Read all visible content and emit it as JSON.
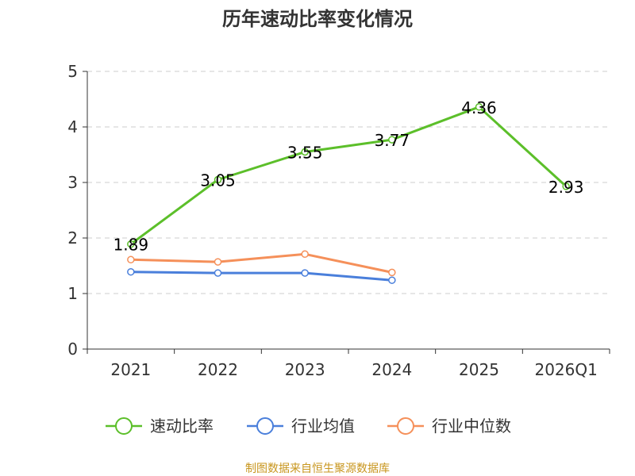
{
  "chart_data": {
    "type": "line",
    "title": "历年速动比率变化情况",
    "categories": [
      "2021",
      "2022",
      "2023",
      "2024",
      "2025",
      "2026Q1"
    ],
    "ylim": [
      0,
      5
    ],
    "yticks": [
      "0",
      "1",
      "2",
      "3",
      "4",
      "5"
    ],
    "grid": true,
    "legend_position": "bottom",
    "series": [
      {
        "name": "速动比率",
        "color": "#5cbf2a",
        "values": [
          1.89,
          3.05,
          3.55,
          3.77,
          4.36,
          2.93
        ],
        "labels": [
          "1.89",
          "3.05",
          "3.55",
          "3.77",
          "4.36",
          "2.93"
        ]
      },
      {
        "name": "行业均值",
        "color": "#4a7fdb",
        "values": [
          1.39,
          1.37,
          1.37,
          1.24,
          null,
          null
        ]
      },
      {
        "name": "行业中位数",
        "color": "#f5905a",
        "values": [
          1.61,
          1.57,
          1.71,
          1.38,
          null,
          null
        ]
      }
    ],
    "source": "制图数据来自恒生聚源数据库"
  }
}
